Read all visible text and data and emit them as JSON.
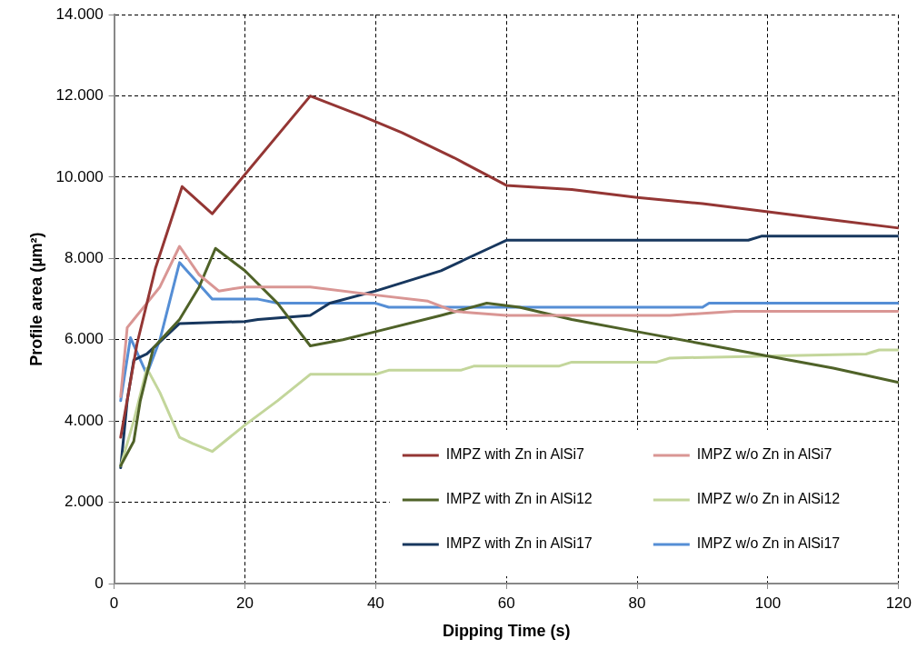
{
  "chart_data": {
    "type": "line",
    "xlabel": "Dipping Time (s)",
    "ylabel": "Profile area (µm²)",
    "xlim": [
      0,
      120
    ],
    "xticks": [
      0,
      20,
      40,
      60,
      80,
      100,
      120
    ],
    "ylim": [
      0,
      14000
    ],
    "yticks": [
      {
        "value": 0,
        "label": "0"
      },
      {
        "value": 2000,
        "label": "2.000"
      },
      {
        "value": 4000,
        "label": "4.000"
      },
      {
        "value": 6000,
        "label": "6.000"
      },
      {
        "value": 8000,
        "label": "8.000"
      },
      {
        "value": 10000,
        "label": "10.000"
      },
      {
        "value": 12000,
        "label": "12.000"
      },
      {
        "value": 14000,
        "label": "14.000"
      }
    ],
    "grid": true,
    "legend": "bottom right",
    "marker": "none",
    "line_style": "solid",
    "series": [
      {
        "name": "IMPZ with Zn in AlSi7",
        "color": "#943634",
        "x": [
          1,
          3.5,
          6.3,
          10.4,
          15,
          30,
          38,
          44,
          52,
          60,
          70,
          80,
          90,
          100,
          110,
          120
        ],
        "values": [
          3600,
          5900,
          7750,
          9770,
          9100,
          12000,
          11500,
          11100,
          10480,
          9800,
          9700,
          9500,
          9350,
          9150,
          8950,
          8750
        ]
      },
      {
        "name": "IMPZ w/o Zn in AlSi7",
        "color": "#d99694",
        "x": [
          1,
          2,
          3,
          5,
          7,
          10,
          13,
          16,
          20,
          30,
          40,
          48,
          52,
          60,
          70,
          85,
          95,
          120
        ],
        "values": [
          4600,
          6300,
          6500,
          6900,
          7300,
          8300,
          7600,
          7200,
          7300,
          7300,
          7100,
          6950,
          6700,
          6600,
          6600,
          6600,
          6700,
          6700
        ]
      },
      {
        "name": "IMPZ with Zn in AlSi12",
        "color": "#4f6228",
        "x": [
          1,
          3,
          4,
          6,
          10,
          13,
          15.5,
          20,
          25,
          30,
          35,
          40,
          50,
          57,
          62,
          70,
          80,
          90,
          100,
          110,
          120
        ],
        "values": [
          2900,
          3500,
          4500,
          5800,
          6500,
          7300,
          8250,
          7700,
          6900,
          5850,
          6000,
          6200,
          6600,
          6900,
          6800,
          6500,
          6200,
          5900,
          5600,
          5300,
          4950
        ]
      },
      {
        "name": "IMPZ w/o Zn in AlSi12",
        "color": "#c3d69b",
        "x": [
          1,
          3,
          5,
          7,
          10,
          12,
          15,
          20,
          25,
          30,
          40,
          42,
          53,
          55,
          68,
          70,
          83,
          85,
          100,
          115,
          117,
          120
        ],
        "values": [
          2900,
          4000,
          5300,
          4700,
          3600,
          3450,
          3250,
          3900,
          4500,
          5150,
          5150,
          5250,
          5250,
          5350,
          5350,
          5450,
          5450,
          5550,
          5600,
          5650,
          5750,
          5750
        ]
      },
      {
        "name": "IMPZ with Zn in AlSi17",
        "color": "#17375e",
        "x": [
          1,
          2,
          3,
          5,
          8,
          10,
          20,
          22,
          30,
          33,
          40,
          50,
          58,
          60,
          97,
          99,
          120
        ],
        "values": [
          2850,
          4500,
          5500,
          5650,
          6100,
          6400,
          6450,
          6500,
          6600,
          6900,
          7200,
          7700,
          8300,
          8450,
          8450,
          8550,
          8550
        ]
      },
      {
        "name": "IMPZ w/o Zn in AlSi17",
        "color": "#558ed5",
        "x": [
          1,
          2.5,
          5,
          7,
          10,
          15,
          22,
          25,
          40,
          42,
          90,
          91,
          120
        ],
        "values": [
          4500,
          6050,
          5150,
          6000,
          7900,
          7000,
          7000,
          6900,
          6900,
          6800,
          6800,
          6900,
          6900
        ]
      }
    ]
  }
}
